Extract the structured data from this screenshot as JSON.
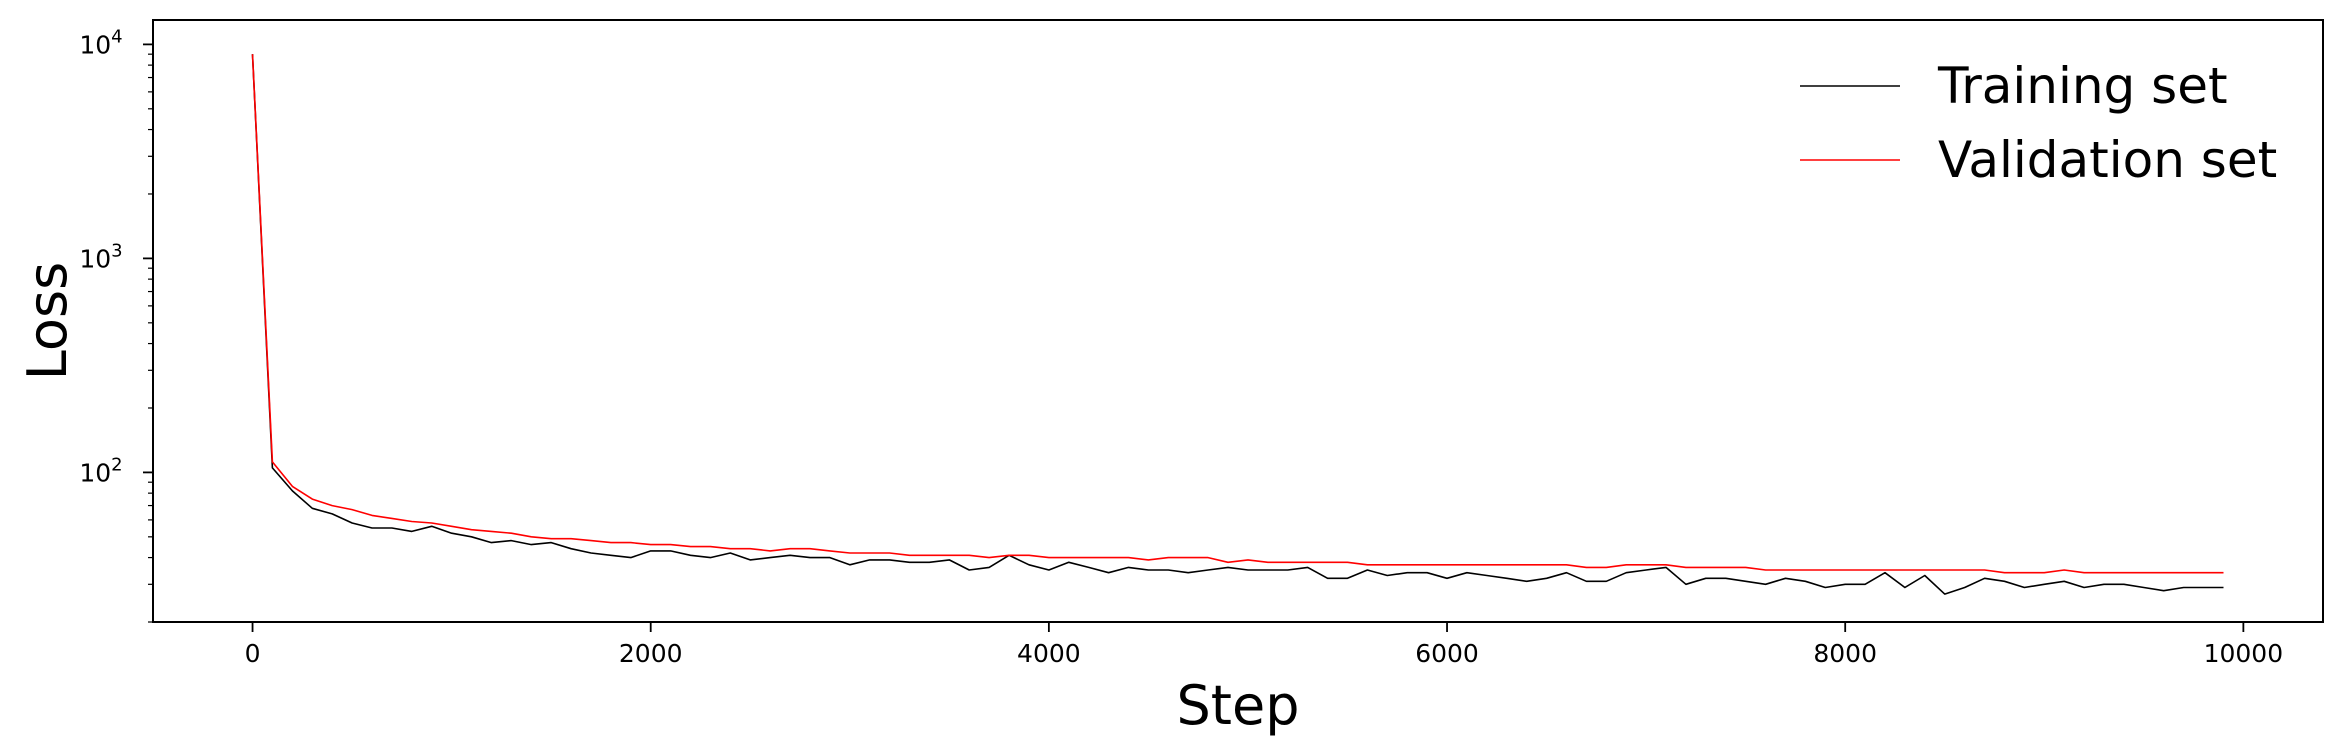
{
  "chart_data": {
    "type": "line",
    "title": "",
    "xlabel": "Step",
    "ylabel": "Loss",
    "xlim": [
      -500,
      10400
    ],
    "ylim": [
      20,
      13000
    ],
    "yscale": "log",
    "xticks": [
      0,
      2000,
      4000,
      6000,
      8000,
      10000
    ],
    "xtick_labels": [
      "0",
      "2000",
      "4000",
      "6000",
      "8000",
      "10000"
    ],
    "yticks": [
      100,
      1000,
      10000
    ],
    "ytick_labels": [
      {
        "base": "10",
        "exp": "2"
      },
      {
        "base": "10",
        "exp": "3"
      },
      {
        "base": "10",
        "exp": "4"
      }
    ],
    "grid": false,
    "legend": "top-right",
    "x": [
      0,
      100,
      200,
      300,
      400,
      500,
      600,
      700,
      800,
      900,
      1000,
      1100,
      1200,
      1300,
      1400,
      1500,
      1600,
      1700,
      1800,
      1900,
      2000,
      2100,
      2200,
      2300,
      2400,
      2500,
      2600,
      2700,
      2800,
      2900,
      3000,
      3100,
      3200,
      3300,
      3400,
      3500,
      3600,
      3700,
      3800,
      3900,
      4000,
      4100,
      4200,
      4300,
      4400,
      4500,
      4600,
      4700,
      4800,
      4900,
      5000,
      5100,
      5200,
      5300,
      5400,
      5500,
      5600,
      5700,
      5800,
      5900,
      6000,
      6100,
      6200,
      6300,
      6400,
      6500,
      6600,
      6700,
      6800,
      6900,
      7000,
      7100,
      7200,
      7300,
      7400,
      7500,
      7600,
      7700,
      7800,
      7900,
      8000,
      8100,
      8200,
      8300,
      8400,
      8500,
      8600,
      8700,
      8800,
      8900,
      9000,
      9100,
      9200,
      9300,
      9400,
      9500,
      9600,
      9700,
      9800,
      9900
    ],
    "series": [
      {
        "name": "Training set",
        "color": "#000000",
        "values": [
          9000,
          105,
          82,
          68,
          64,
          58,
          55,
          55,
          53,
          56,
          52,
          50,
          47,
          48,
          46,
          47,
          44,
          42,
          41,
          40,
          43,
          43,
          41,
          40,
          42,
          39,
          40,
          41,
          40,
          40,
          37,
          39,
          39,
          38,
          38,
          39,
          35,
          36,
          41,
          37,
          35,
          38,
          36,
          34,
          36,
          35,
          35,
          34,
          35,
          36,
          35,
          35,
          35,
          36,
          32,
          32,
          35,
          33,
          34,
          34,
          32,
          34,
          33,
          32,
          31,
          32,
          34,
          31,
          31,
          34,
          35,
          36,
          30,
          32,
          32,
          31,
          30,
          32,
          31,
          29,
          30,
          30,
          34,
          29,
          33,
          27,
          29,
          32,
          31,
          29,
          30,
          31,
          29,
          30,
          30,
          29,
          28,
          29,
          29,
          29
        ]
      },
      {
        "name": "Validation set",
        "color": "#ff0000",
        "values": [
          9000,
          112,
          86,
          75,
          70,
          67,
          63,
          61,
          59,
          58,
          56,
          54,
          53,
          52,
          50,
          49,
          49,
          48,
          47,
          47,
          46,
          46,
          45,
          45,
          44,
          44,
          43,
          44,
          44,
          43,
          42,
          42,
          42,
          41,
          41,
          41,
          41,
          40,
          41,
          41,
          40,
          40,
          40,
          40,
          40,
          39,
          40,
          40,
          40,
          38,
          39,
          38,
          38,
          38,
          38,
          38,
          37,
          37,
          37,
          37,
          37,
          37,
          37,
          37,
          37,
          37,
          37,
          36,
          36,
          37,
          37,
          37,
          36,
          36,
          36,
          36,
          35,
          35,
          35,
          35,
          35,
          35,
          35,
          35,
          35,
          35,
          35,
          35,
          34,
          34,
          34,
          35,
          34,
          34,
          34,
          34,
          34,
          34,
          34,
          34
        ]
      }
    ]
  }
}
